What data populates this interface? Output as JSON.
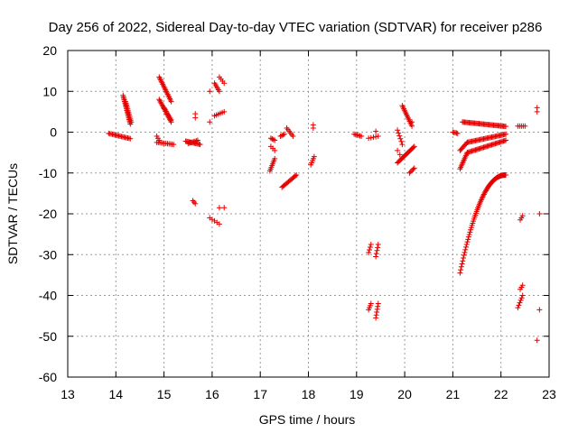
{
  "chart_data": {
    "type": "scatter",
    "title": "Day 256 of 2022, Sidereal Day-to-day VTEC variation (SDTVAR) for receiver p286",
    "xlabel": "GPS time / hours",
    "ylabel": "SDTVAR / TECUs",
    "xlim": [
      13,
      23
    ],
    "ylim": [
      -60,
      20
    ],
    "xticks": [
      13,
      14,
      15,
      16,
      17,
      18,
      19,
      20,
      21,
      22,
      23
    ],
    "yticks": [
      20,
      10,
      0,
      -10,
      -20,
      -30,
      -40,
      -50,
      -60
    ],
    "grid": true,
    "marker": "+",
    "color": "#e60000",
    "segments": [
      {
        "x0": 13.85,
        "y0": -0.3,
        "x1": 14.3,
        "y1": -1.6,
        "n": 18
      },
      {
        "x0": 14.15,
        "y0": 9.0,
        "x1": 14.3,
        "y1": 2.0,
        "n": 20
      },
      {
        "x0": 14.2,
        "y0": 7.5,
        "x1": 14.32,
        "y1": 2.5,
        "n": 12
      },
      {
        "x0": 14.9,
        "y0": 13.5,
        "x1": 15.15,
        "y1": 7.5,
        "n": 18
      },
      {
        "x0": 14.9,
        "y0": 8.0,
        "x1": 15.15,
        "y1": 2.5,
        "n": 18
      },
      {
        "x0": 15.0,
        "y0": 6.0,
        "x1": 15.15,
        "y1": 3.0,
        "n": 8
      },
      {
        "x0": 14.85,
        "y0": -1.0,
        "x1": 14.9,
        "y1": -2.0,
        "n": 3
      },
      {
        "x0": 14.85,
        "y0": -2.5,
        "x1": 15.2,
        "y1": -3.0,
        "n": 12
      },
      {
        "x0": 15.45,
        "y0": -2.2,
        "x1": 15.75,
        "y1": -3.0,
        "n": 14
      },
      {
        "x0": 15.5,
        "y0": -2.8,
        "x1": 15.7,
        "y1": -2.0,
        "n": 8
      },
      {
        "x0": 15.65,
        "y0": 4.5,
        "x1": 15.65,
        "y1": 3.5,
        "n": 2
      },
      {
        "x0": 15.6,
        "y0": -16.8,
        "x1": 15.65,
        "y1": -17.5,
        "n": 3
      },
      {
        "x0": 15.95,
        "y0": 10.0,
        "x1": 15.95,
        "y1": 10.0,
        "n": 1
      },
      {
        "x0": 15.95,
        "y0": 2.5,
        "x1": 15.95,
        "y1": 2.5,
        "n": 1
      },
      {
        "x0": 16.05,
        "y0": 12.0,
        "x1": 16.15,
        "y1": 10.0,
        "n": 6
      },
      {
        "x0": 16.15,
        "y0": 13.5,
        "x1": 16.25,
        "y1": 12.0,
        "n": 4
      },
      {
        "x0": 16.05,
        "y0": 4.0,
        "x1": 16.25,
        "y1": 5.0,
        "n": 6
      },
      {
        "x0": 15.95,
        "y0": -21.0,
        "x1": 16.15,
        "y1": -22.5,
        "n": 5
      },
      {
        "x0": 16.15,
        "y0": -18.5,
        "x1": 16.25,
        "y1": -18.5,
        "n": 2
      },
      {
        "x0": 17.22,
        "y0": -1.5,
        "x1": 17.3,
        "y1": -2.0,
        "n": 4
      },
      {
        "x0": 17.22,
        "y0": -3.5,
        "x1": 17.3,
        "y1": -4.5,
        "n": 3
      },
      {
        "x0": 17.2,
        "y0": -9.5,
        "x1": 17.3,
        "y1": -6.5,
        "n": 8
      },
      {
        "x0": 17.42,
        "y0": -1.0,
        "x1": 17.5,
        "y1": -0.5,
        "n": 4
      },
      {
        "x0": 17.45,
        "y0": -13.5,
        "x1": 17.75,
        "y1": -10.5,
        "n": 14
      },
      {
        "x0": 17.55,
        "y0": 1.0,
        "x1": 17.68,
        "y1": -1.0,
        "n": 6
      },
      {
        "x0": 18.1,
        "y0": 1.8,
        "x1": 18.1,
        "y1": 1.0,
        "n": 2
      },
      {
        "x0": 18.05,
        "y0": -8.0,
        "x1": 18.12,
        "y1": -6.0,
        "n": 5
      },
      {
        "x0": 18.95,
        "y0": -0.5,
        "x1": 19.1,
        "y1": -1.0,
        "n": 6
      },
      {
        "x0": 19.25,
        "y0": -1.5,
        "x1": 19.45,
        "y1": -1.0,
        "n": 5
      },
      {
        "x0": 19.4,
        "y0": 0.2,
        "x1": 19.4,
        "y1": 0.2,
        "n": 1
      },
      {
        "x0": 19.25,
        "y0": -29.5,
        "x1": 19.3,
        "y1": -27.5,
        "n": 4
      },
      {
        "x0": 19.4,
        "y0": -30.5,
        "x1": 19.45,
        "y1": -27.5,
        "n": 5
      },
      {
        "x0": 19.25,
        "y0": -43.5,
        "x1": 19.3,
        "y1": -42.0,
        "n": 4
      },
      {
        "x0": 19.4,
        "y0": -45.5,
        "x1": 19.45,
        "y1": -42.0,
        "n": 6
      },
      {
        "x0": 19.85,
        "y0": 0.5,
        "x1": 19.95,
        "y1": -3.0,
        "n": 6
      },
      {
        "x0": 19.95,
        "y0": 6.5,
        "x1": 20.15,
        "y1": 1.5,
        "n": 14
      },
      {
        "x0": 20.15,
        "y0": 2.5,
        "x1": 20.15,
        "y1": 2.5,
        "n": 1
      },
      {
        "x0": 19.85,
        "y0": -4.5,
        "x1": 19.9,
        "y1": -5.5,
        "n": 2
      },
      {
        "x0": 19.85,
        "y0": -7.5,
        "x1": 20.2,
        "y1": -3.5,
        "n": 18
      },
      {
        "x0": 20.1,
        "y0": -10.0,
        "x1": 20.2,
        "y1": -8.8,
        "n": 5
      },
      {
        "x0": 21.0,
        "y0": 0.0,
        "x1": 21.1,
        "y1": -0.3,
        "n": 5
      },
      {
        "x0": 21.2,
        "y0": 2.5,
        "x1": 22.1,
        "y1": 1.4,
        "n": 40
      },
      {
        "x0": 22.35,
        "y0": 1.5,
        "x1": 22.5,
        "y1": 1.5,
        "n": 5
      },
      {
        "x0": 22.75,
        "y0": 6.0,
        "x1": 22.75,
        "y1": 5.0,
        "n": 2
      },
      {
        "x0": 21.15,
        "y0": -4.5,
        "x1": 21.3,
        "y1": -2.5,
        "n": 8
      },
      {
        "x0": 21.3,
        "y0": -2.5,
        "x1": 22.1,
        "y1": -0.5,
        "n": 34
      },
      {
        "x0": 21.15,
        "y0": -9.0,
        "x1": 21.3,
        "y1": -5.0,
        "n": 12
      },
      {
        "x0": 21.3,
        "y0": -5.0,
        "x1": 22.1,
        "y1": -2.0,
        "n": 34
      },
      {
        "x0": 22.4,
        "y0": -21.5,
        "x1": 22.45,
        "y1": -20.5,
        "n": 3
      },
      {
        "x0": 22.35,
        "y0": -43.0,
        "x1": 22.45,
        "y1": -40.0,
        "n": 6
      },
      {
        "x0": 22.4,
        "y0": -38.5,
        "x1": 22.45,
        "y1": -37.5,
        "n": 3
      },
      {
        "x0": 22.8,
        "y0": -20.0,
        "x1": 22.8,
        "y1": -20.0,
        "n": 1
      },
      {
        "x0": 22.8,
        "y0": -43.5,
        "x1": 22.8,
        "y1": -43.5,
        "n": 1
      },
      {
        "x0": 22.75,
        "y0": -51.0,
        "x1": 22.75,
        "y1": -51.0,
        "n": 1
      }
    ],
    "arcs": [
      {
        "x0": 21.15,
        "x1": 22.1,
        "y0": -34.5,
        "y1": -10.5,
        "n": 70
      }
    ]
  }
}
